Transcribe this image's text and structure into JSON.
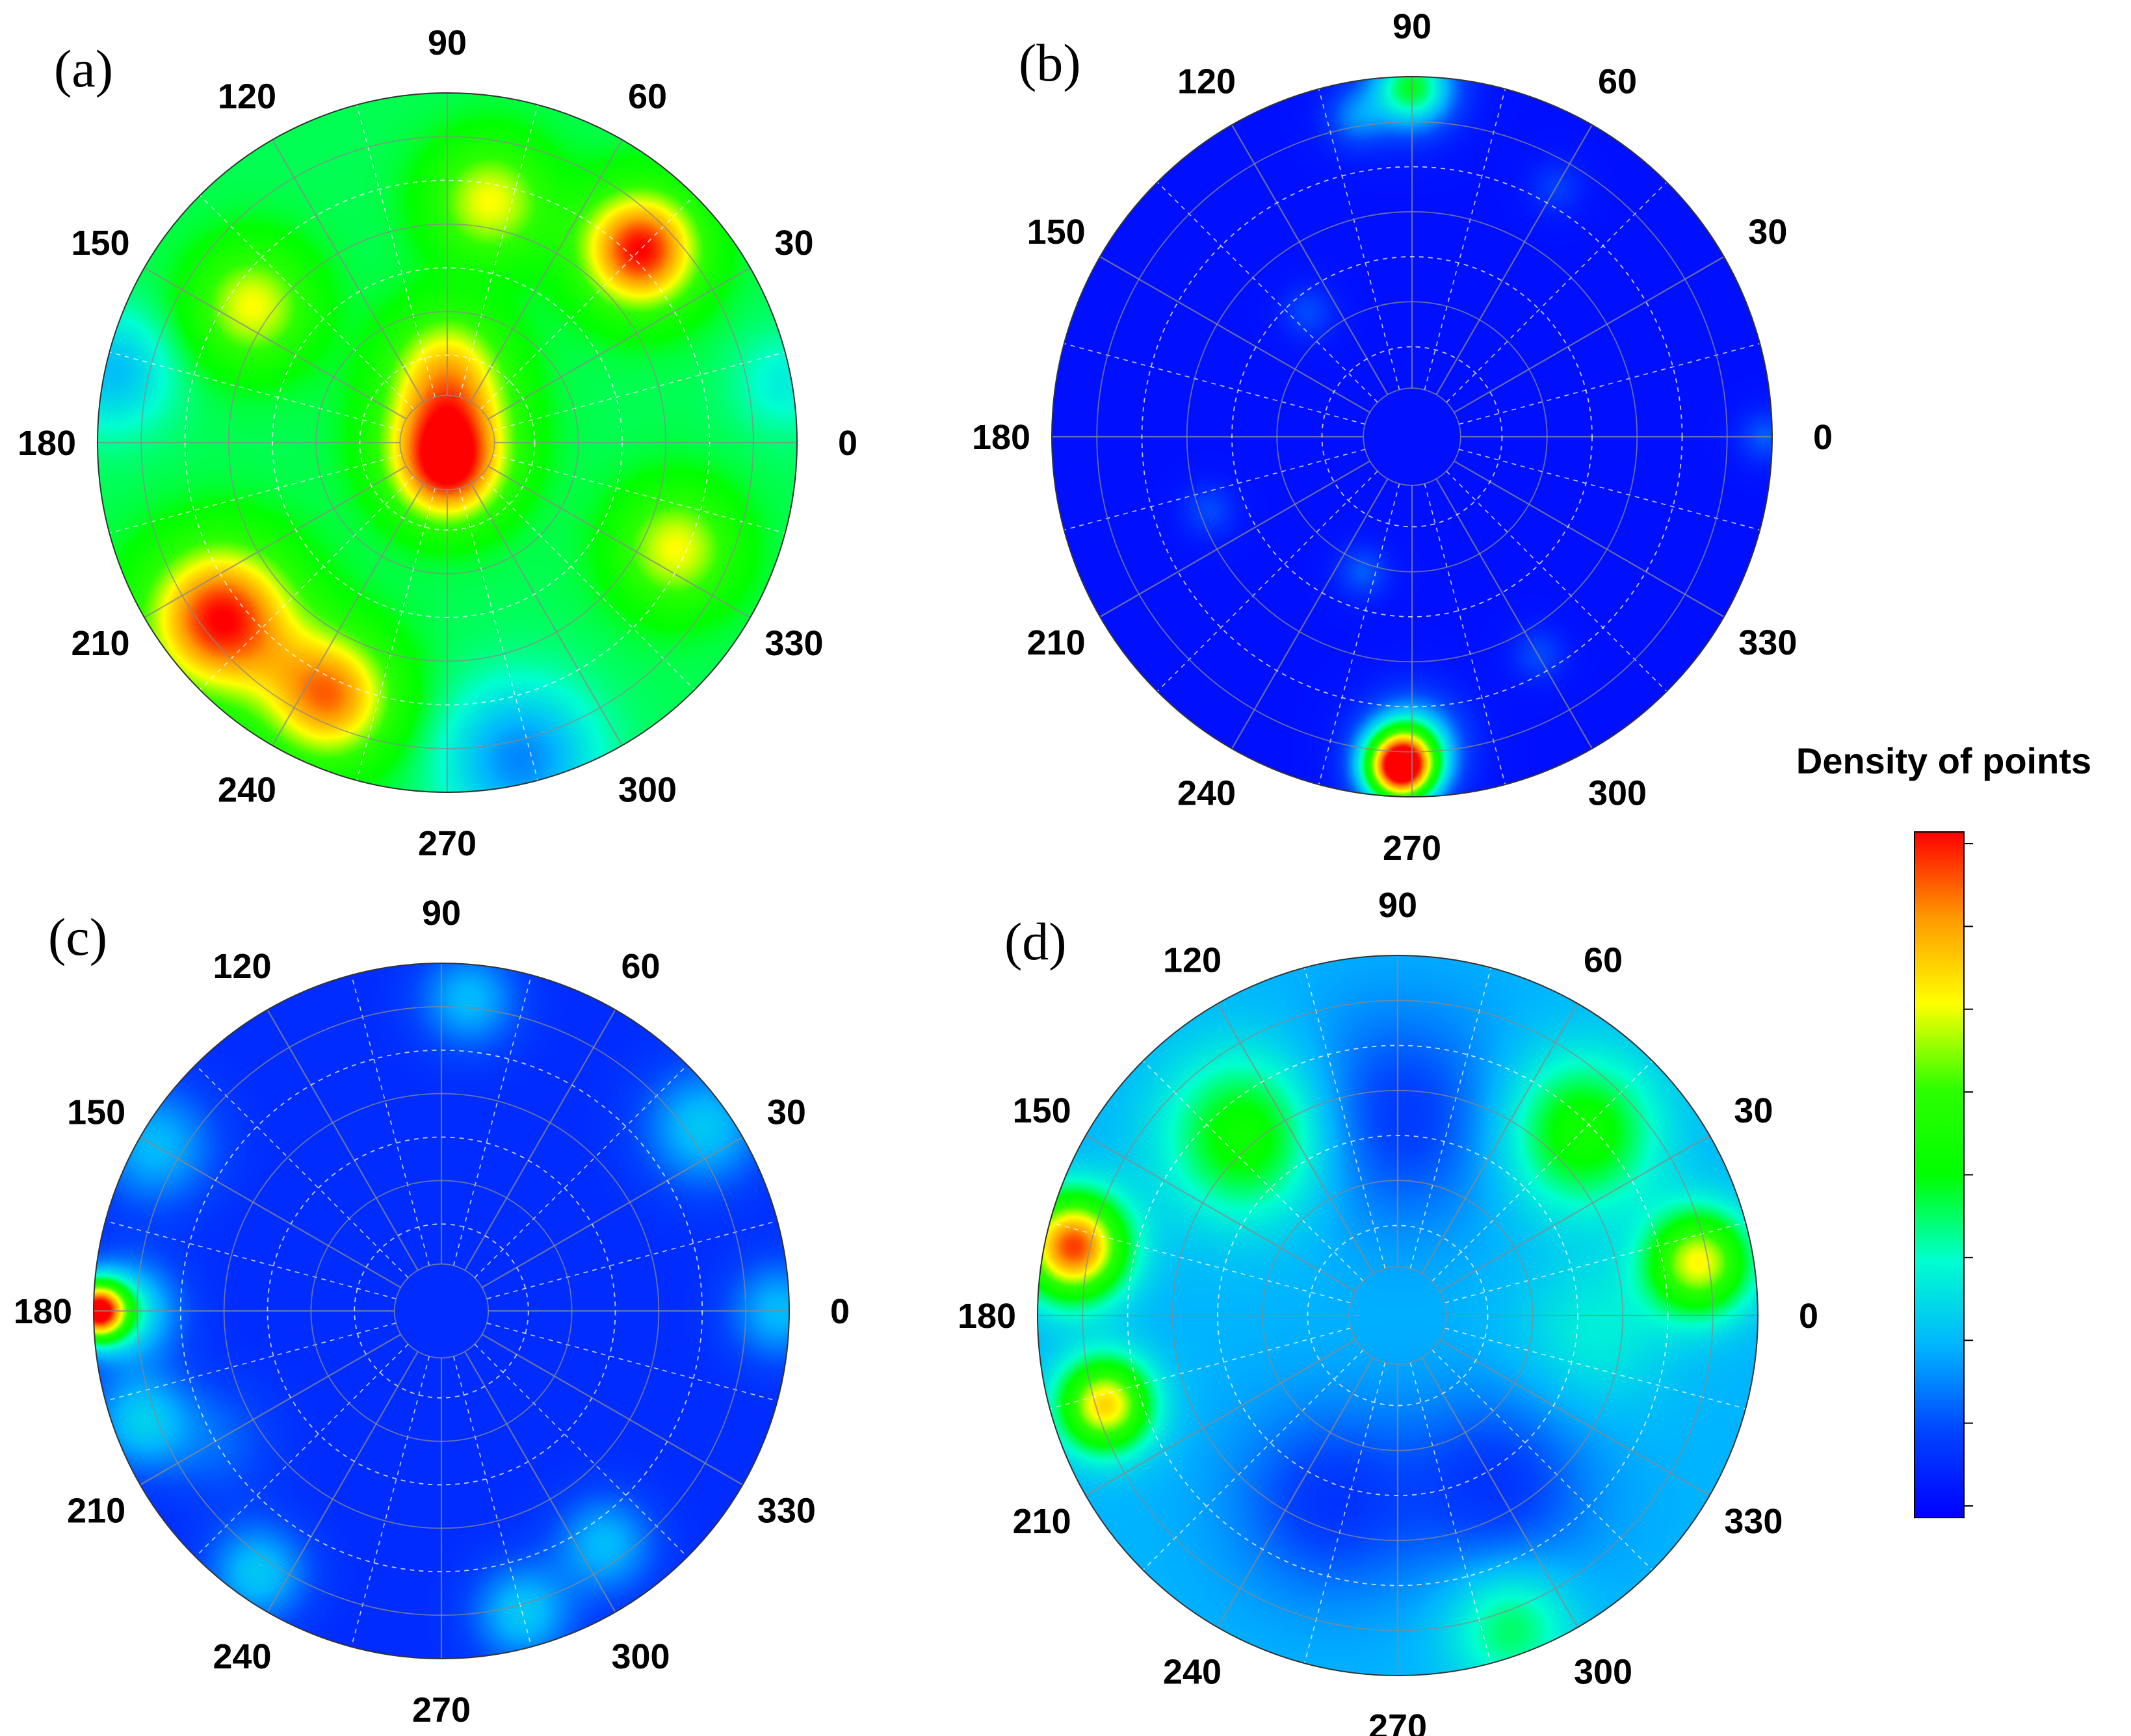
{
  "chart_data": {
    "type": "polar_density_contour",
    "colorbar": {
      "title": "Density of points",
      "tick_count": 9,
      "colormap": [
        "#0000ff",
        "#0044ff",
        "#00b4ff",
        "#00ffd0",
        "#00ff00",
        "#2dff00",
        "#ffff00",
        "#ff9900",
        "#ff0000"
      ]
    },
    "angle_ticks": [
      "0",
      "30",
      "60",
      "90",
      "120",
      "150",
      "180",
      "210",
      "240",
      "270",
      "300",
      "330"
    ],
    "panels": [
      {
        "label": "(a)",
        "base_level": 0.45,
        "blobs": [
          {
            "angle": 80,
            "r": 0.7,
            "amp": 0.3,
            "size": 0.12
          },
          {
            "angle": 45,
            "r": 0.78,
            "amp": 0.55,
            "size": 0.12
          },
          {
            "angle": 145,
            "r": 0.68,
            "amp": 0.3,
            "size": 0.12
          },
          {
            "angle": 90,
            "r": 0.0,
            "amp": 0.45,
            "size": 0.13
          },
          {
            "angle": 90,
            "r": 0.22,
            "amp": 0.3,
            "size": 0.12
          },
          {
            "angle": 270,
            "r": 0.1,
            "amp": 0.25,
            "size": 0.1
          },
          {
            "angle": 335,
            "r": 0.72,
            "amp": 0.3,
            "size": 0.12
          },
          {
            "angle": 218,
            "r": 0.82,
            "amp": 0.55,
            "size": 0.15
          },
          {
            "angle": 245,
            "r": 0.8,
            "amp": 0.45,
            "size": 0.13
          },
          {
            "angle": 283,
            "r": 0.93,
            "amp": -0.25,
            "size": 0.15
          },
          {
            "angle": 168,
            "r": 0.98,
            "amp": -0.18,
            "size": 0.12
          },
          {
            "angle": 10,
            "r": 0.98,
            "amp": -0.1,
            "size": 0.1
          }
        ]
      },
      {
        "label": "(b)",
        "base_level": 0.03,
        "blobs": [
          {
            "angle": 90,
            "r": 0.97,
            "amp": 0.45,
            "size": 0.08
          },
          {
            "angle": 268,
            "r": 0.92,
            "amp": 0.97,
            "size": 0.07
          },
          {
            "angle": 270,
            "r": 0.85,
            "amp": 0.3,
            "size": 0.09
          },
          {
            "angle": 100,
            "r": 0.9,
            "amp": 0.15,
            "size": 0.06
          },
          {
            "angle": 250,
            "r": 0.4,
            "amp": 0.12,
            "size": 0.05
          },
          {
            "angle": 200,
            "r": 0.6,
            "amp": 0.1,
            "size": 0.05
          },
          {
            "angle": 0,
            "r": 0.98,
            "amp": 0.12,
            "size": 0.05
          },
          {
            "angle": 300,
            "r": 0.7,
            "amp": 0.1,
            "size": 0.05
          },
          {
            "angle": 130,
            "r": 0.45,
            "amp": 0.1,
            "size": 0.05
          },
          {
            "angle": 60,
            "r": 0.8,
            "amp": 0.08,
            "size": 0.05
          }
        ]
      },
      {
        "label": "(c)",
        "base_level": 0.08,
        "blobs": [
          {
            "angle": 180,
            "r": 0.99,
            "amp": 0.85,
            "size": 0.06
          },
          {
            "angle": 180,
            "r": 0.9,
            "amp": 0.25,
            "size": 0.1
          },
          {
            "angle": 200,
            "r": 0.92,
            "amp": 0.2,
            "size": 0.1
          },
          {
            "angle": 150,
            "r": 0.95,
            "amp": 0.18,
            "size": 0.12
          },
          {
            "angle": 235,
            "r": 0.92,
            "amp": 0.2,
            "size": 0.1
          },
          {
            "angle": 285,
            "r": 0.9,
            "amp": 0.2,
            "size": 0.1
          },
          {
            "angle": 305,
            "r": 0.82,
            "amp": 0.18,
            "size": 0.1
          },
          {
            "angle": 35,
            "r": 0.92,
            "amp": 0.2,
            "size": 0.12
          },
          {
            "angle": 85,
            "r": 0.9,
            "amp": 0.18,
            "size": 0.1
          },
          {
            "angle": 0,
            "r": 0.97,
            "amp": 0.18,
            "size": 0.1
          },
          {
            "angle": 210,
            "r": 0.75,
            "amp": 0.08,
            "size": 0.12
          }
        ]
      },
      {
        "label": "(d)",
        "base_level": 0.25,
        "blobs": [
          {
            "angle": 168,
            "r": 0.92,
            "amp": 0.7,
            "size": 0.1
          },
          {
            "angle": 197,
            "r": 0.85,
            "amp": 0.55,
            "size": 0.09
          },
          {
            "angle": 10,
            "r": 0.85,
            "amp": 0.5,
            "size": 0.1
          },
          {
            "angle": 130,
            "r": 0.65,
            "amp": 0.3,
            "size": 0.16
          },
          {
            "angle": 45,
            "r": 0.72,
            "amp": 0.3,
            "size": 0.15
          },
          {
            "angle": 290,
            "r": 0.92,
            "amp": 0.2,
            "size": 0.12
          },
          {
            "angle": 90,
            "r": 0.55,
            "amp": -0.15,
            "size": 0.2
          },
          {
            "angle": 250,
            "r": 0.55,
            "amp": -0.15,
            "size": 0.18
          },
          {
            "angle": 300,
            "r": 0.55,
            "amp": -0.15,
            "size": 0.18
          },
          {
            "angle": 355,
            "r": 0.55,
            "amp": 0.1,
            "size": 0.15
          }
        ]
      }
    ]
  }
}
